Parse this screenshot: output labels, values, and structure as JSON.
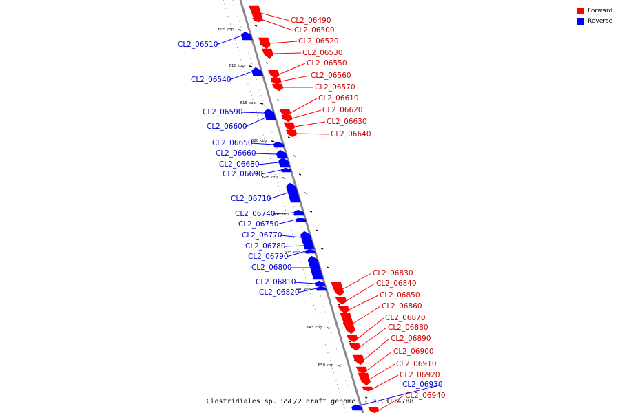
{
  "legend": [
    {
      "label": "Forward",
      "color": "#ff0000"
    },
    {
      "label": "Reverse",
      "color": "#0000ff"
    }
  ],
  "caption": "Clostridiales sp. SSC/2 draft genome. - 0..3114788",
  "colors": {
    "forward": "#ff0000",
    "reverse": "#0000ff",
    "backbone": "#888888",
    "forward_label": "#cc0000",
    "reverse_label": "#0000cc"
  },
  "ticks": [
    "605 kbp",
    "610 kbp",
    "615 kbp",
    "620 kbp",
    "625 kbp",
    "630 kbp",
    "635 kbp",
    "640 kbp",
    "645 kbp",
    "650 kbp"
  ],
  "genes": [
    {
      "id": "CL2_06490",
      "strand": "forward"
    },
    {
      "id": "CL2_06500",
      "strand": "forward"
    },
    {
      "id": "CL2_06510",
      "strand": "reverse"
    },
    {
      "id": "CL2_06520",
      "strand": "forward"
    },
    {
      "id": "CL2_06530",
      "strand": "forward"
    },
    {
      "id": "CL2_06540",
      "strand": "reverse"
    },
    {
      "id": "CL2_06550",
      "strand": "forward"
    },
    {
      "id": "CL2_06560",
      "strand": "forward"
    },
    {
      "id": "CL2_06570",
      "strand": "forward"
    },
    {
      "id": "CL2_06590",
      "strand": "reverse"
    },
    {
      "id": "CL2_06600",
      "strand": "reverse"
    },
    {
      "id": "CL2_06610",
      "strand": "forward"
    },
    {
      "id": "CL2_06620",
      "strand": "forward"
    },
    {
      "id": "CL2_06630",
      "strand": "forward"
    },
    {
      "id": "CL2_06640",
      "strand": "forward"
    },
    {
      "id": "CL2_06650",
      "strand": "reverse"
    },
    {
      "id": "CL2_06660",
      "strand": "reverse"
    },
    {
      "id": "CL2_06680",
      "strand": "reverse"
    },
    {
      "id": "CL2_06690",
      "strand": "reverse"
    },
    {
      "id": "CL2_06710",
      "strand": "reverse"
    },
    {
      "id": "CL2_06740",
      "strand": "reverse"
    },
    {
      "id": "CL2_06750",
      "strand": "reverse"
    },
    {
      "id": "CL2_06770",
      "strand": "reverse"
    },
    {
      "id": "CL2_06780",
      "strand": "reverse"
    },
    {
      "id": "CL2_06790",
      "strand": "reverse"
    },
    {
      "id": "CL2_06800",
      "strand": "reverse"
    },
    {
      "id": "CL2_06810",
      "strand": "reverse"
    },
    {
      "id": "CL2_06820",
      "strand": "reverse"
    },
    {
      "id": "CL2_06830",
      "strand": "forward"
    },
    {
      "id": "CL2_06840",
      "strand": "forward"
    },
    {
      "id": "CL2_06850",
      "strand": "forward"
    },
    {
      "id": "CL2_06860",
      "strand": "forward"
    },
    {
      "id": "CL2_06870",
      "strand": "forward"
    },
    {
      "id": "CL2_06880",
      "strand": "forward"
    },
    {
      "id": "CL2_06890",
      "strand": "forward"
    },
    {
      "id": "CL2_06900",
      "strand": "forward"
    },
    {
      "id": "CL2_06910",
      "strand": "forward"
    },
    {
      "id": "CL2_06920",
      "strand": "forward"
    },
    {
      "id": "CL2_06930",
      "strand": "reverse"
    },
    {
      "id": "CL2_06940",
      "strand": "forward"
    }
  ]
}
